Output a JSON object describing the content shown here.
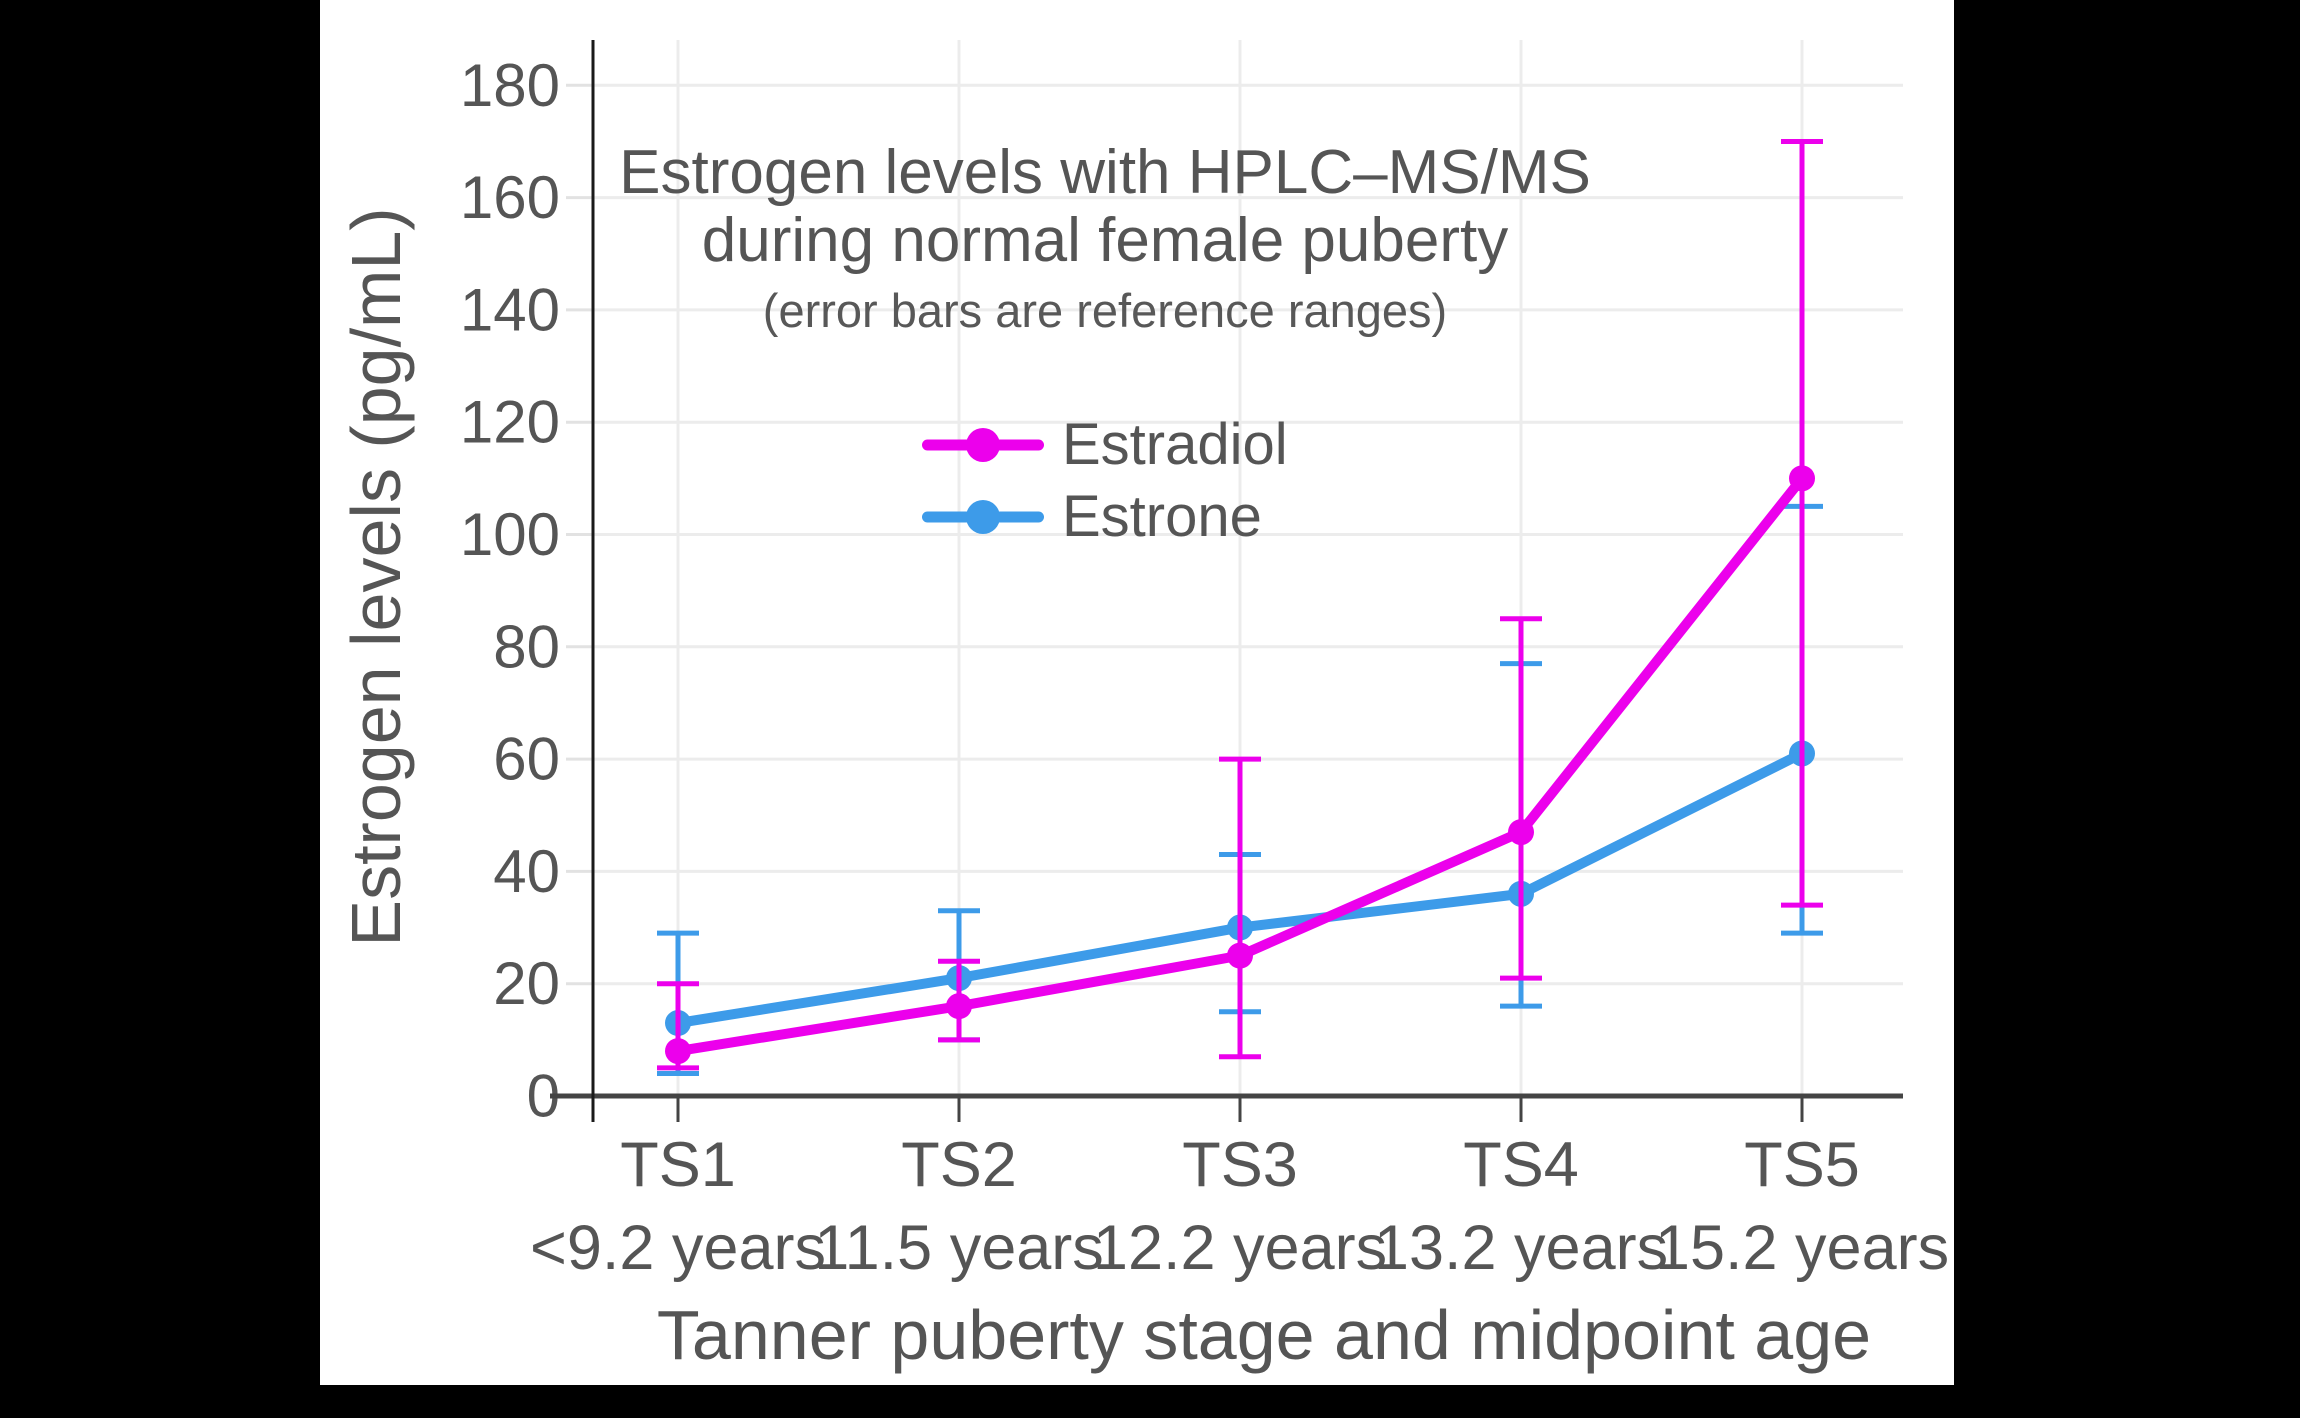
{
  "page": {
    "background": "#000000",
    "canvas_background": "#ffffff",
    "text_color": "#555555"
  },
  "chart_data": {
    "type": "line",
    "title_line1": "Estrogen levels with HPLC–MS/MS",
    "title_line2": "during normal female puberty",
    "subtitle": "(error bars are reference ranges)",
    "xlabel": "Tanner puberty stage and midpoint age",
    "ylabel": "Estrogen levels (pg/mL)",
    "categories": [
      "TS1",
      "TS2",
      "TS3",
      "TS4",
      "TS5"
    ],
    "category_sublabels": [
      "<9.2 years",
      "11.5 years",
      "12.2 years",
      "13.2 years",
      "15.2 years"
    ],
    "ylim": [
      0,
      180
    ],
    "ytick_step": 20,
    "grid": true,
    "legend_position": "inside-upper-left",
    "error_bar_meaning": "reference ranges",
    "series": [
      {
        "name": "Estradiol",
        "color": "#ec00ec",
        "values": [
          8,
          16,
          25,
          47,
          110
        ],
        "range_low": [
          5,
          10,
          7,
          21,
          34
        ],
        "range_high": [
          20,
          24,
          60,
          85,
          170
        ]
      },
      {
        "name": "Estrone",
        "color": "#3d9be9",
        "values": [
          13,
          21,
          30,
          36,
          61
        ],
        "range_low": [
          4,
          10,
          15,
          16,
          29
        ],
        "range_high": [
          29,
          33,
          43,
          77,
          105
        ]
      }
    ]
  }
}
